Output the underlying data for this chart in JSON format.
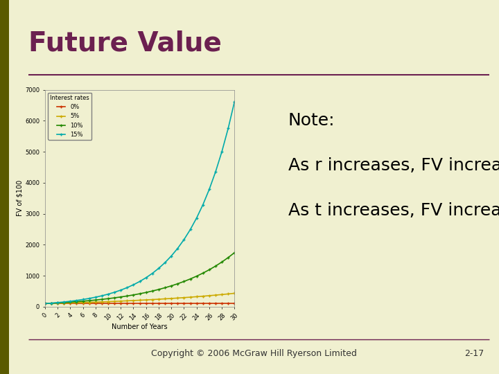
{
  "title": "Future Value",
  "title_color": "#6b2050",
  "title_fontsize": 28,
  "slide_bg": "#f0f0d0",
  "left_bar_color": "#5a5a00",
  "divider_color": "#6b2050",
  "chart_title": "Interest rates",
  "xlabel": "Number of Years",
  "ylabel": "FV of $100",
  "rates": [
    0.0,
    0.05,
    0.1,
    0.15
  ],
  "rate_labels": [
    "0%",
    "5%",
    "10%",
    "15%"
  ],
  "rate_colors": [
    "#cc3300",
    "#ccaa00",
    "#228800",
    "#00aaaa"
  ],
  "t_max": 30,
  "pv": 100,
  "note_line1": "Note:",
  "note_line2": "As r increases, FV increases",
  "note_line3": "As t increases, FV increases",
  "copyright": "Copyright © 2006 McGraw Hill Ryerson Limited",
  "page_num": "2-17",
  "note_fontsize": 18,
  "copyright_fontsize": 9
}
